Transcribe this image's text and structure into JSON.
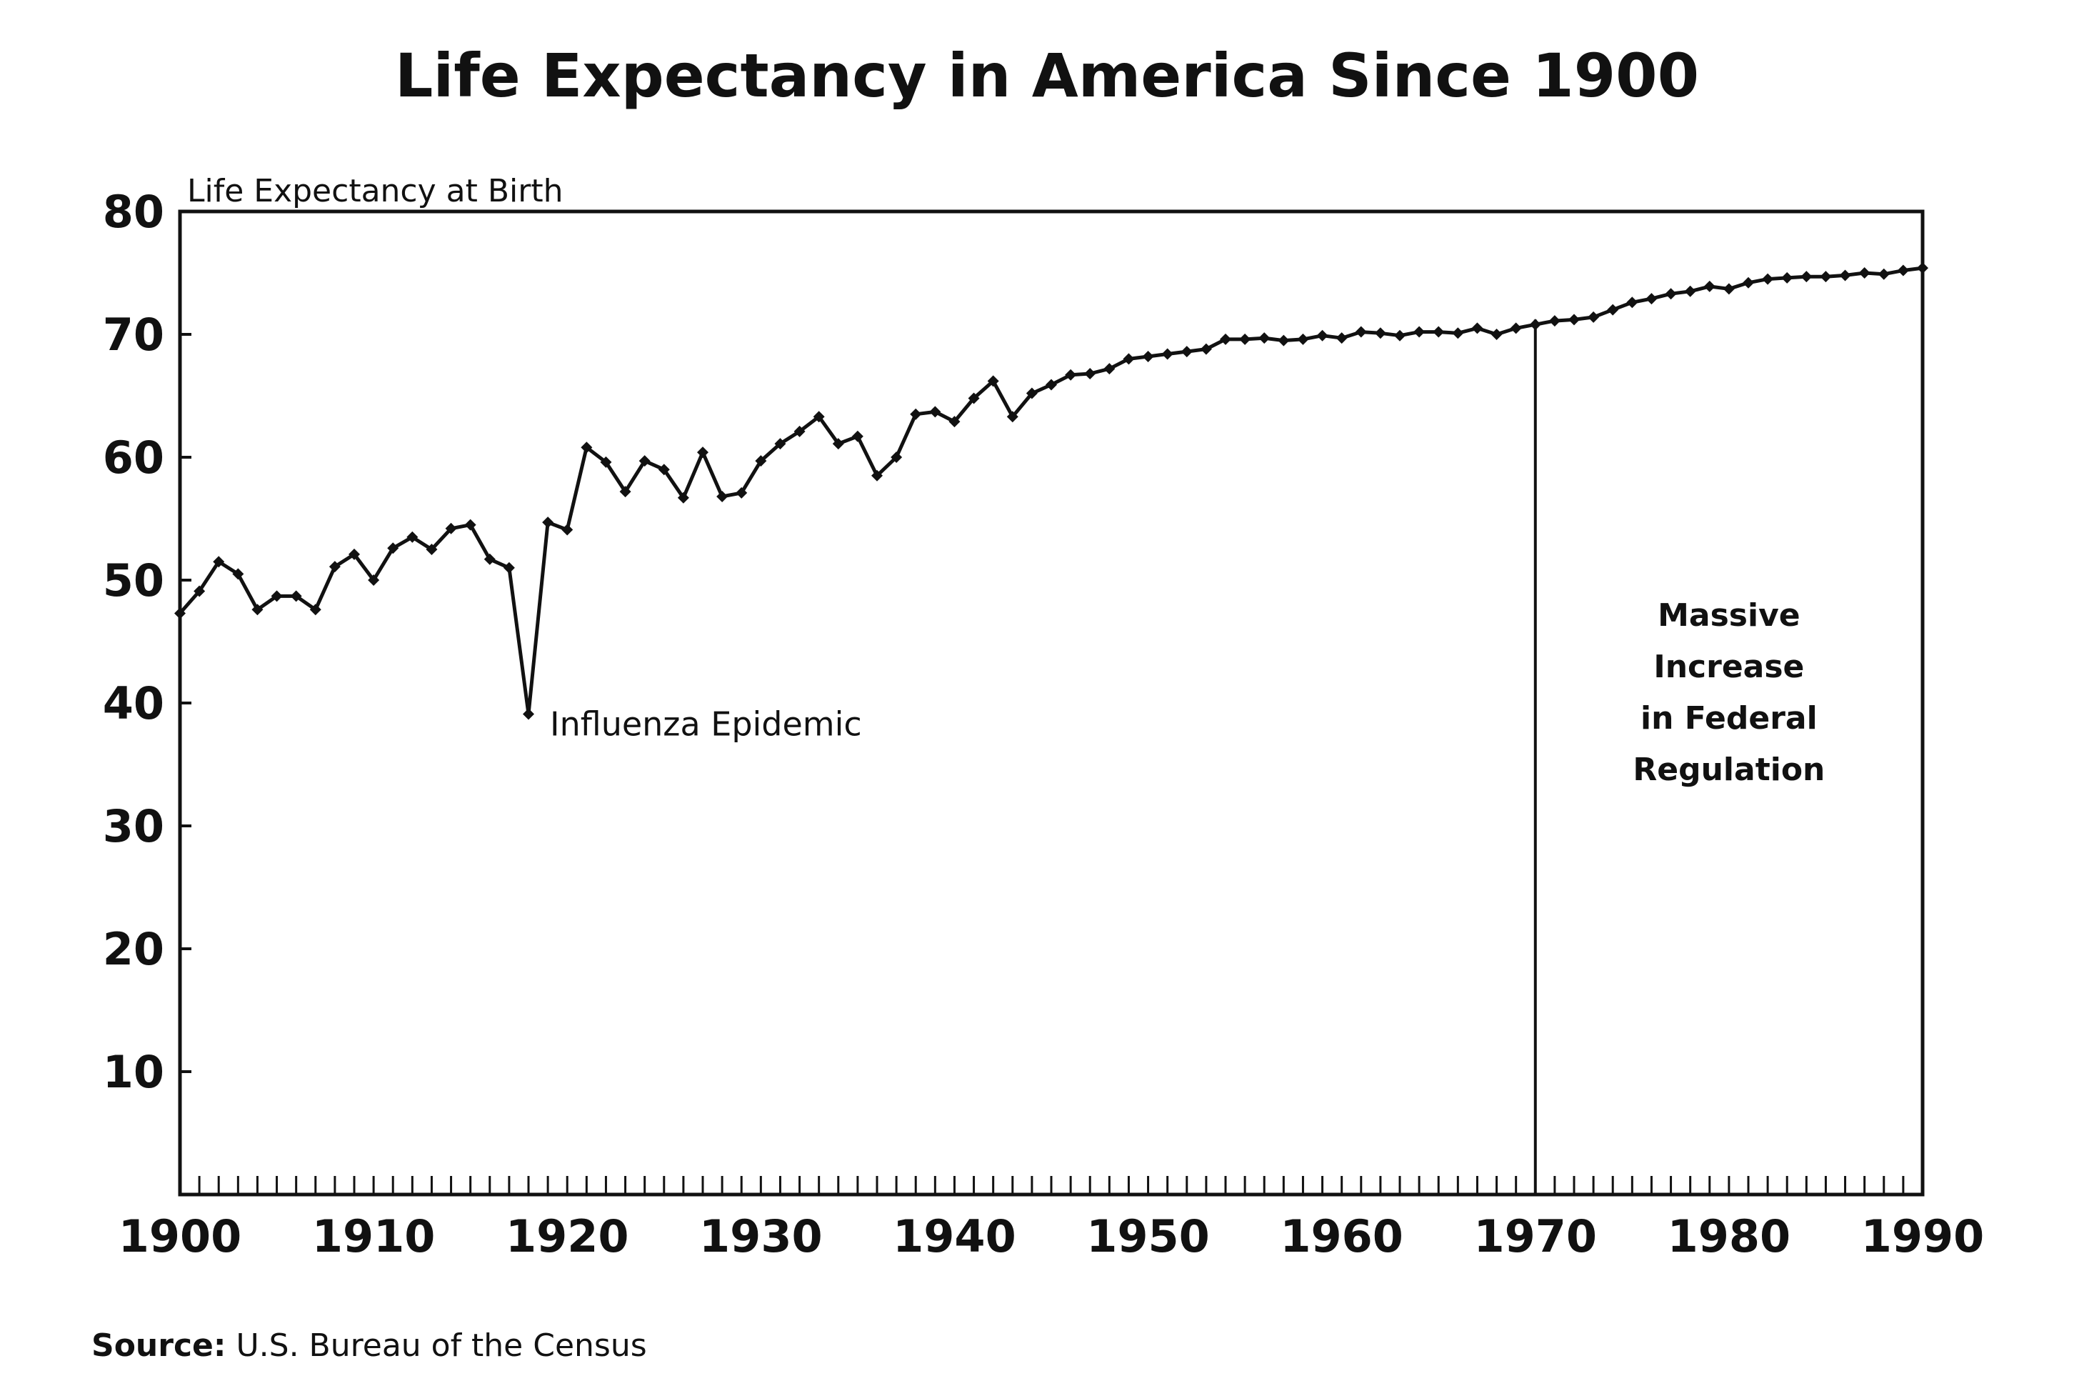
{
  "chart_data": {
    "type": "line",
    "title": "Life Expectancy in America Since 1900",
    "ylabel": "Life Expectancy at Birth",
    "xlabel": "",
    "xlim": [
      1900,
      1990
    ],
    "ylim": [
      0,
      80
    ],
    "x_ticks": [
      1900,
      1910,
      1920,
      1930,
      1940,
      1950,
      1960,
      1970,
      1980,
      1990
    ],
    "y_ticks": [
      10,
      20,
      30,
      40,
      50,
      60,
      70,
      80
    ],
    "grid": false,
    "legend": "none",
    "series": [
      {
        "color": "#111111",
        "x": [
          1900,
          1901,
          1902,
          1903,
          1904,
          1905,
          1906,
          1907,
          1908,
          1909,
          1910,
          1911,
          1912,
          1913,
          1914,
          1915,
          1916,
          1917,
          1918,
          1919,
          1920,
          1921,
          1922,
          1923,
          1924,
          1925,
          1926,
          1927,
          1928,
          1929,
          1930,
          1931,
          1932,
          1933,
          1934,
          1935,
          1936,
          1937,
          1938,
          1939,
          1940,
          1941,
          1942,
          1943,
          1944,
          1945,
          1946,
          1947,
          1948,
          1949,
          1950,
          1951,
          1952,
          1953,
          1954,
          1955,
          1956,
          1957,
          1958,
          1959,
          1960,
          1961,
          1962,
          1963,
          1964,
          1965,
          1966,
          1967,
          1968,
          1969,
          1970,
          1971,
          1972,
          1973,
          1974,
          1975,
          1976,
          1977,
          1978,
          1979,
          1980,
          1981,
          1982,
          1983,
          1984,
          1985,
          1986,
          1987,
          1988,
          1989,
          1990
        ],
        "values": [
          47.3,
          49.1,
          51.5,
          50.5,
          47.6,
          48.7,
          48.7,
          47.6,
          51.1,
          52.1,
          50.0,
          52.6,
          53.5,
          52.5,
          54.2,
          54.5,
          51.7,
          51.0,
          39.1,
          54.7,
          54.1,
          60.8,
          59.6,
          57.2,
          59.7,
          59.0,
          56.7,
          60.4,
          56.8,
          57.1,
          59.7,
          61.1,
          62.1,
          63.3,
          61.1,
          61.7,
          58.5,
          60.0,
          63.5,
          63.7,
          62.9,
          64.8,
          66.2,
          63.3,
          65.2,
          65.9,
          66.7,
          66.8,
          67.2,
          68.0,
          68.2,
          68.4,
          68.6,
          68.8,
          69.6,
          69.6,
          69.7,
          69.5,
          69.6,
          69.9,
          69.7,
          70.2,
          70.1,
          69.9,
          70.2,
          70.2,
          70.1,
          70.5,
          70.0,
          70.5,
          70.8,
          71.1,
          71.2,
          71.4,
          72.0,
          72.6,
          72.9,
          73.3,
          73.5,
          73.9,
          73.7,
          74.2,
          74.5,
          74.6,
          74.7,
          74.7,
          74.8,
          75.0,
          74.9,
          75.2,
          75.4
        ]
      }
    ],
    "annotations": [
      {
        "text": "Influenza Epidemic",
        "x": 1918,
        "y": 39.1
      },
      {
        "lines": [
          "Massive",
          "Increase",
          "in Federal",
          "Regulation"
        ],
        "x": 1970
      }
    ],
    "reference_line_x": 1970,
    "source_label": "Source:",
    "source_text": " U.S. Bureau of the Census"
  }
}
